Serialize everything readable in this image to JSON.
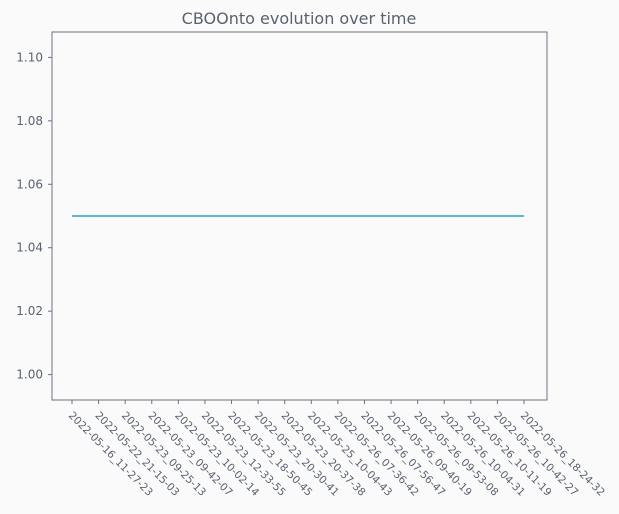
{
  "chart_data": {
    "type": "line",
    "title": "CBOOnto evolution over time",
    "xlabel": "",
    "ylabel": "",
    "categories": [
      "2022-05-16_11-27-23",
      "2022-05-22_21-15-03",
      "2022-05-23_09-25-13",
      "2022-05-23_09-42-07",
      "2022-05-23_10-02-14",
      "2022-05-23_12-33-55",
      "2022-05-23_18-50-45",
      "2022-05-23_20-30-41",
      "2022-05-23_20-37-38",
      "2022-05-25_10-04-43",
      "2022-05-26_07-36-42",
      "2022-05-26_07-56-47",
      "2022-05-26_09-40-19",
      "2022-05-26_09-53-08",
      "2022-05-26_10-04-31",
      "2022-05-26_10-11-19",
      "2022-05-26_10-42-27",
      "2022-05-26_18-24-32"
    ],
    "series": [
      {
        "values": [
          1.05,
          1.05,
          1.05,
          1.05,
          1.05,
          1.05,
          1.05,
          1.05,
          1.05,
          1.05,
          1.05,
          1.05,
          1.05,
          1.05,
          1.05,
          1.05,
          1.05,
          1.05
        ],
        "color": "#29a3c4"
      }
    ],
    "ylim": [
      0.992,
      1.108
    ],
    "yticks": [
      "1.00",
      "1.02",
      "1.04",
      "1.06",
      "1.08",
      "1.10"
    ],
    "grid": false,
    "legend": "none"
  }
}
